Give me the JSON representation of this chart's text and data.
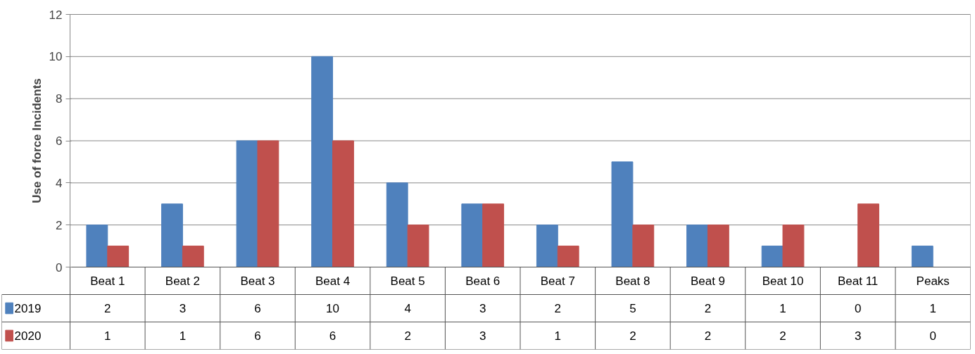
{
  "chart_data": {
    "type": "bar",
    "ylabel": "Use of force Incidents",
    "categories": [
      "Beat 1",
      "Beat 2",
      "Beat 3",
      "Beat 4",
      "Beat 5",
      "Beat 6",
      "Beat 7",
      "Beat 8",
      "Beat 9",
      "Beat 10",
      "Beat 11",
      "Peaks"
    ],
    "series": [
      {
        "name": "2019",
        "color": "#4f81bd",
        "values": [
          2,
          3,
          6,
          10,
          4,
          3,
          2,
          5,
          2,
          1,
          0,
          1
        ]
      },
      {
        "name": "2020",
        "color": "#c0504d",
        "values": [
          1,
          1,
          6,
          6,
          2,
          3,
          1,
          2,
          2,
          2,
          3,
          0
        ]
      }
    ],
    "ylim": [
      0,
      12
    ],
    "yticks": [
      0,
      2,
      4,
      6,
      8,
      10,
      12
    ],
    "grid": "y",
    "legend": "bottom left",
    "data_labels": true
  }
}
